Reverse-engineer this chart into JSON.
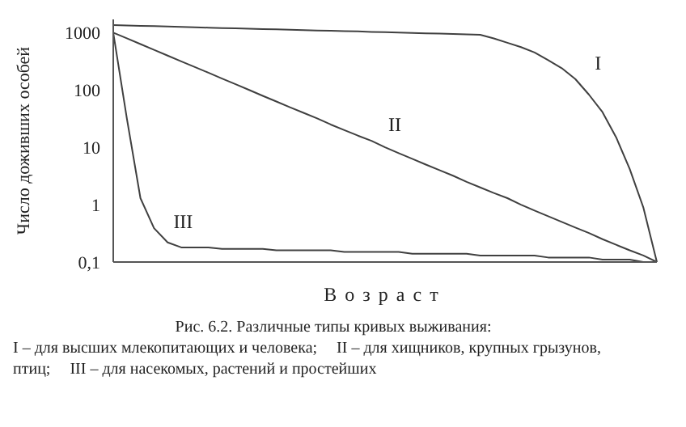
{
  "chart_data": {
    "type": "line",
    "ylabel": "Число доживших особей",
    "xlabel": "Возраст",
    "categories": [
      null,
      null,
      null,
      null,
      null,
      null,
      null,
      null,
      null,
      null,
      null,
      null,
      null,
      null,
      null,
      null,
      null,
      null,
      null,
      null,
      null,
      null,
      null,
      null,
      null,
      null,
      null,
      null,
      null,
      null,
      null,
      null,
      null,
      null,
      null,
      null,
      null,
      null,
      null,
      null,
      null
    ],
    "series": [
      {
        "name": "I",
        "color": "#404040",
        "values": [
          1350,
          1330,
          1310,
          1300,
          1280,
          1260,
          1240,
          1220,
          1200,
          1190,
          1170,
          1150,
          1140,
          1120,
          1110,
          1090,
          1080,
          1060,
          1050,
          1030,
          1020,
          1000,
          990,
          970,
          960,
          950,
          930,
          920,
          794,
          665,
          560,
          450,
          330,
          240,
          155,
          83,
          41,
          15,
          4.2,
          0.9,
          0.1
        ]
      },
      {
        "name": "II",
        "color": "#404040",
        "values": [
          1000,
          794,
          631,
          501,
          398,
          316,
          251,
          200,
          158,
          126,
          100,
          79,
          63,
          50,
          40,
          32,
          25,
          20,
          16,
          13,
          10,
          7.9,
          6.3,
          5,
          4,
          3.2,
          2.5,
          2,
          1.6,
          1.3,
          1,
          0.79,
          0.63,
          0.5,
          0.4,
          0.32,
          0.25,
          0.2,
          0.16,
          0.13,
          0.1
        ]
      },
      {
        "name": "III",
        "color": "#404040",
        "values": [
          1000,
          32,
          1.3,
          0.39,
          0.22,
          0.18,
          0.18,
          0.18,
          0.17,
          0.17,
          0.17,
          0.17,
          0.16,
          0.16,
          0.16,
          0.16,
          0.16,
          0.15,
          0.15,
          0.15,
          0.15,
          0.15,
          0.14,
          0.14,
          0.14,
          0.14,
          0.14,
          0.13,
          0.13,
          0.13,
          0.13,
          0.13,
          0.12,
          0.12,
          0.12,
          0.12,
          0.11,
          0.11,
          0.11,
          0.1,
          null
        ]
      }
    ],
    "log": "y",
    "ylim": [
      0.1,
      1700
    ],
    "yticks": [
      {
        "value": 0.1,
        "label": "0,1"
      },
      1,
      10,
      100,
      1000
    ],
    "tick_labels": "y",
    "grid": false,
    "legend": false,
    "marker": "none",
    "line_style": "solid",
    "annotations": [
      "Рис. 6.2. Различные типы кривых выживания:",
      "I – для высших млекопитающих и человека;",
      "II – для хищников, крупных грызунов, птиц;",
      "III – для насекомых, растений и простейших"
    ]
  }
}
